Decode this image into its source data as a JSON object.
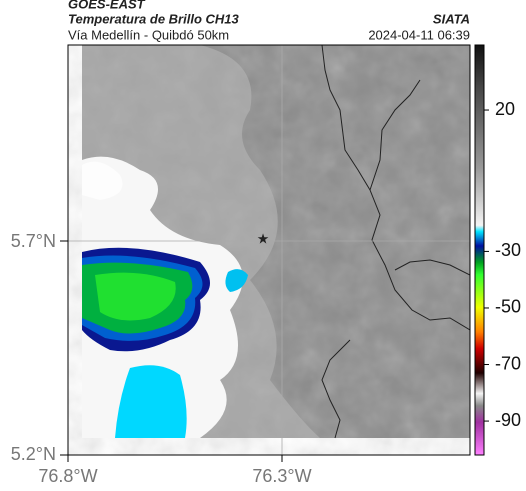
{
  "header": {
    "title": "GOES-EAST",
    "subtitle": "Temperatura de Brillo CH13",
    "source": "SIATA",
    "location": "Vía Medellín - Quibdó 50km",
    "timestamp": "2024-04-11 06:39"
  },
  "map": {
    "lat_labels": [
      "5.7°N",
      "5.2°N"
    ],
    "lon_labels": [
      "76.8°W",
      "76.3°W"
    ]
  },
  "colorbar": {
    "range": [
      -102,
      43
    ],
    "ticks": [
      20,
      -30,
      -50,
      -70,
      -90
    ]
  }
}
